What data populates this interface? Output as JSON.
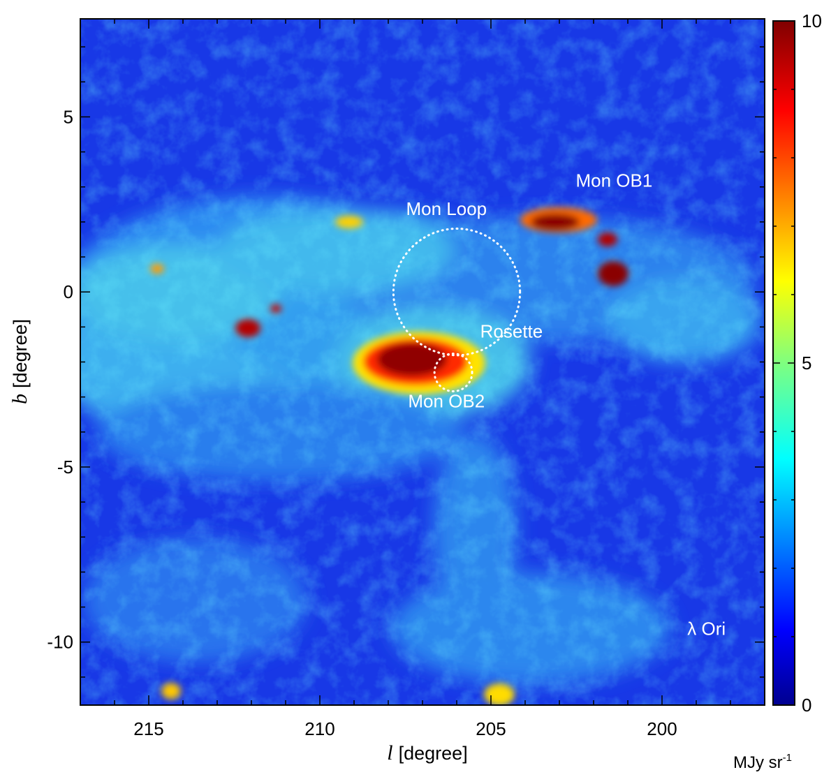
{
  "chart_data": {
    "type": "heatmap",
    "title": "",
    "xlabel_var": "l",
    "xlabel_unit": "[degree]",
    "ylabel_var": "b",
    "ylabel_unit": "[degree]",
    "xlim": [
      217,
      197
    ],
    "ylim": [
      -11.8,
      7.8
    ],
    "x_ticks": [
      215,
      210,
      205,
      200
    ],
    "x_tick_labels": [
      "215",
      "210",
      "205",
      "200"
    ],
    "y_ticks": [
      5,
      0,
      -5,
      -10
    ],
    "y_tick_labels": [
      "5",
      "0",
      "-5",
      "-10"
    ],
    "colorbar": {
      "min": 0,
      "max": 10,
      "ticks": [
        0,
        5,
        10
      ],
      "tick_labels": [
        "0",
        "5",
        "10"
      ],
      "unit_main": "MJy sr",
      "unit_sup": "-1",
      "colormap": "jet"
    },
    "annotations": [
      {
        "text": "Mon OB1",
        "l": 201.4,
        "b": 3.0
      },
      {
        "text": "Mon Loop",
        "l": 206.3,
        "b": 2.2
      },
      {
        "text": "Rosette",
        "l": 204.4,
        "b": -1.3
      },
      {
        "text": "Mon OB2",
        "l": 206.3,
        "b": -3.3
      },
      {
        "text": "λ Ori",
        "l": 198.7,
        "b": -9.8
      }
    ],
    "circles": [
      {
        "name": "Mon Loop",
        "l": 206.0,
        "b": 0.0,
        "r": 1.85
      },
      {
        "name": "Rosette",
        "l": 206.1,
        "b": -2.3,
        "r": 0.55
      }
    ]
  }
}
